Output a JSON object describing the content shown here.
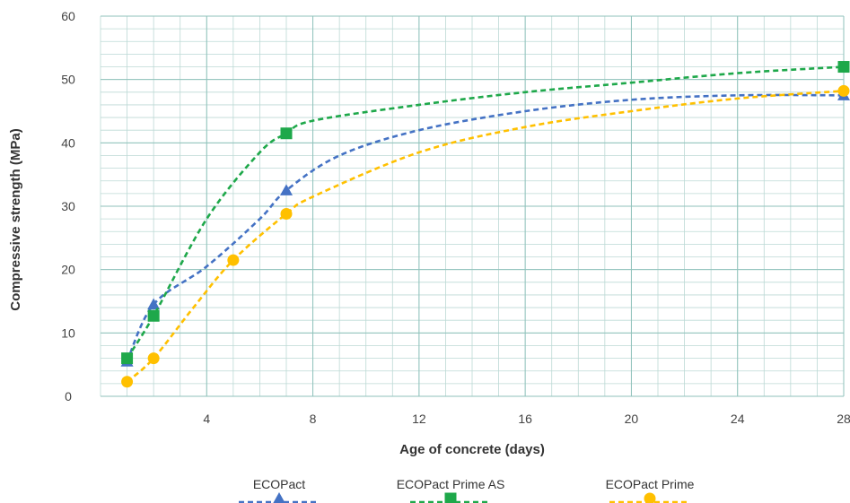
{
  "chart_data": {
    "type": "line",
    "xlabel": "Age of concrete (days)",
    "ylabel": "Compressive strength (MPa)",
    "xlim": [
      0,
      28
    ],
    "ylim": [
      0,
      60
    ],
    "x_ticks": [
      4,
      8,
      12,
      16,
      20,
      24,
      28
    ],
    "y_ticks": [
      0,
      10,
      20,
      30,
      40,
      50,
      60
    ],
    "grid": "on",
    "legend_position": "bottom",
    "series": [
      {
        "name": "ECOPact",
        "color": "#4472c4",
        "marker": "triangle",
        "x": [
          1,
          2,
          7,
          28
        ],
        "y": [
          5.5,
          14.5,
          32.5,
          47.5
        ],
        "curve": [
          [
            1,
            5.5
          ],
          [
            2,
            14.5
          ],
          [
            4,
            20.5
          ],
          [
            6,
            28
          ],
          [
            7,
            32.5
          ],
          [
            9,
            38
          ],
          [
            12,
            42
          ],
          [
            16,
            45
          ],
          [
            20,
            46.8
          ],
          [
            24,
            47.5
          ],
          [
            28,
            47.5
          ]
        ]
      },
      {
        "name": "ECOPact Prime AS",
        "color": "#1ea84a",
        "marker": "square",
        "x": [
          1,
          2,
          7,
          28
        ],
        "y": [
          6,
          12.7,
          41.5,
          52
        ],
        "curve": [
          [
            1,
            6
          ],
          [
            2,
            12.7
          ],
          [
            4,
            28
          ],
          [
            6,
            38.5
          ],
          [
            7,
            41.5
          ],
          [
            8,
            43.5
          ],
          [
            12,
            46
          ],
          [
            16,
            48
          ],
          [
            20,
            49.5
          ],
          [
            24,
            51
          ],
          [
            28,
            52
          ]
        ]
      },
      {
        "name": "ECOPact Prime",
        "color": "#ffc000",
        "marker": "circle",
        "x": [
          1,
          2,
          5,
          7,
          28
        ],
        "y": [
          2.3,
          6,
          21.5,
          28.8,
          48.2
        ],
        "curve": [
          [
            1,
            2.3
          ],
          [
            2,
            6
          ],
          [
            3.5,
            14
          ],
          [
            5,
            21.5
          ],
          [
            7,
            28.8
          ],
          [
            8,
            31.5
          ],
          [
            12,
            38.5
          ],
          [
            16,
            42.5
          ],
          [
            20,
            45
          ],
          [
            24,
            47
          ],
          [
            28,
            48.2
          ]
        ]
      }
    ]
  }
}
